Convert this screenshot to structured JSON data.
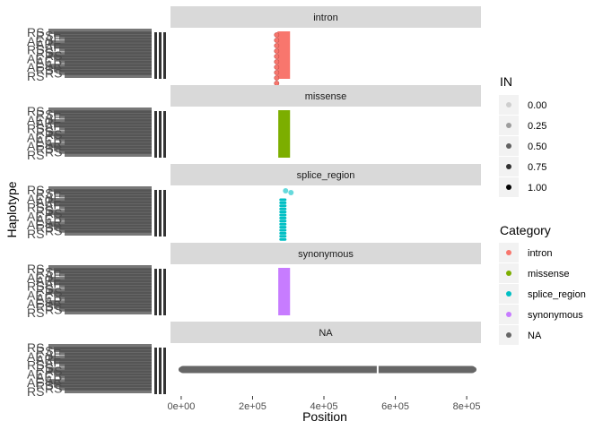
{
  "chart_data": {
    "type": "scatter",
    "xlabel": "Position",
    "ylabel": "Haplotype",
    "x_ticks": [
      0,
      200000,
      400000,
      600000,
      800000
    ],
    "x_tick_labels": [
      "0e+00",
      "2e+05",
      "4e+05",
      "6e+05",
      "8e+05"
    ],
    "xlim": [
      -30000,
      840000
    ],
    "facets": [
      {
        "label": "intron",
        "category": "intron",
        "x_range": [
          270000,
          305000
        ],
        "alpha": 1
      },
      {
        "label": "missense",
        "category": "missense",
        "x_range": [
          272000,
          305000
        ],
        "alpha": 1
      },
      {
        "label": "splice_region",
        "category": "splice_region",
        "x_range": [
          270000,
          300000
        ],
        "alpha": 0.85
      },
      {
        "label": "synonymous",
        "category": "synonymous",
        "x_range": [
          272000,
          305000
        ],
        "alpha": 1
      },
      {
        "label": "NA",
        "category": "NA",
        "x_range": [
          0,
          820000
        ],
        "alpha": 1
      }
    ],
    "y_tick_fragments": [
      "RS",
      "RS",
      "AF",
      "AF",
      "AR",
      "AF",
      "RS"
    ],
    "legend_alpha": {
      "title": "IN",
      "entries": [
        {
          "label": "0.00",
          "alpha": 0.15
        },
        {
          "label": "0.25",
          "alpha": 0.35
        },
        {
          "label": "0.50",
          "alpha": 0.6
        },
        {
          "label": "0.75",
          "alpha": 0.8
        },
        {
          "label": "1.00",
          "alpha": 1.0
        }
      ]
    },
    "legend_category": {
      "title": "Category",
      "entries": [
        {
          "label": "intron",
          "color": "#F8766D"
        },
        {
          "label": "missense",
          "color": "#7CAE00"
        },
        {
          "label": "splice_region",
          "color": "#00BFC4"
        },
        {
          "label": "synonymous",
          "color": "#C77CFF"
        },
        {
          "label": "NA",
          "color": "#666666"
        }
      ]
    },
    "legend_placement": "right",
    "grid": false,
    "strip_color": "#d9d9d9"
  }
}
